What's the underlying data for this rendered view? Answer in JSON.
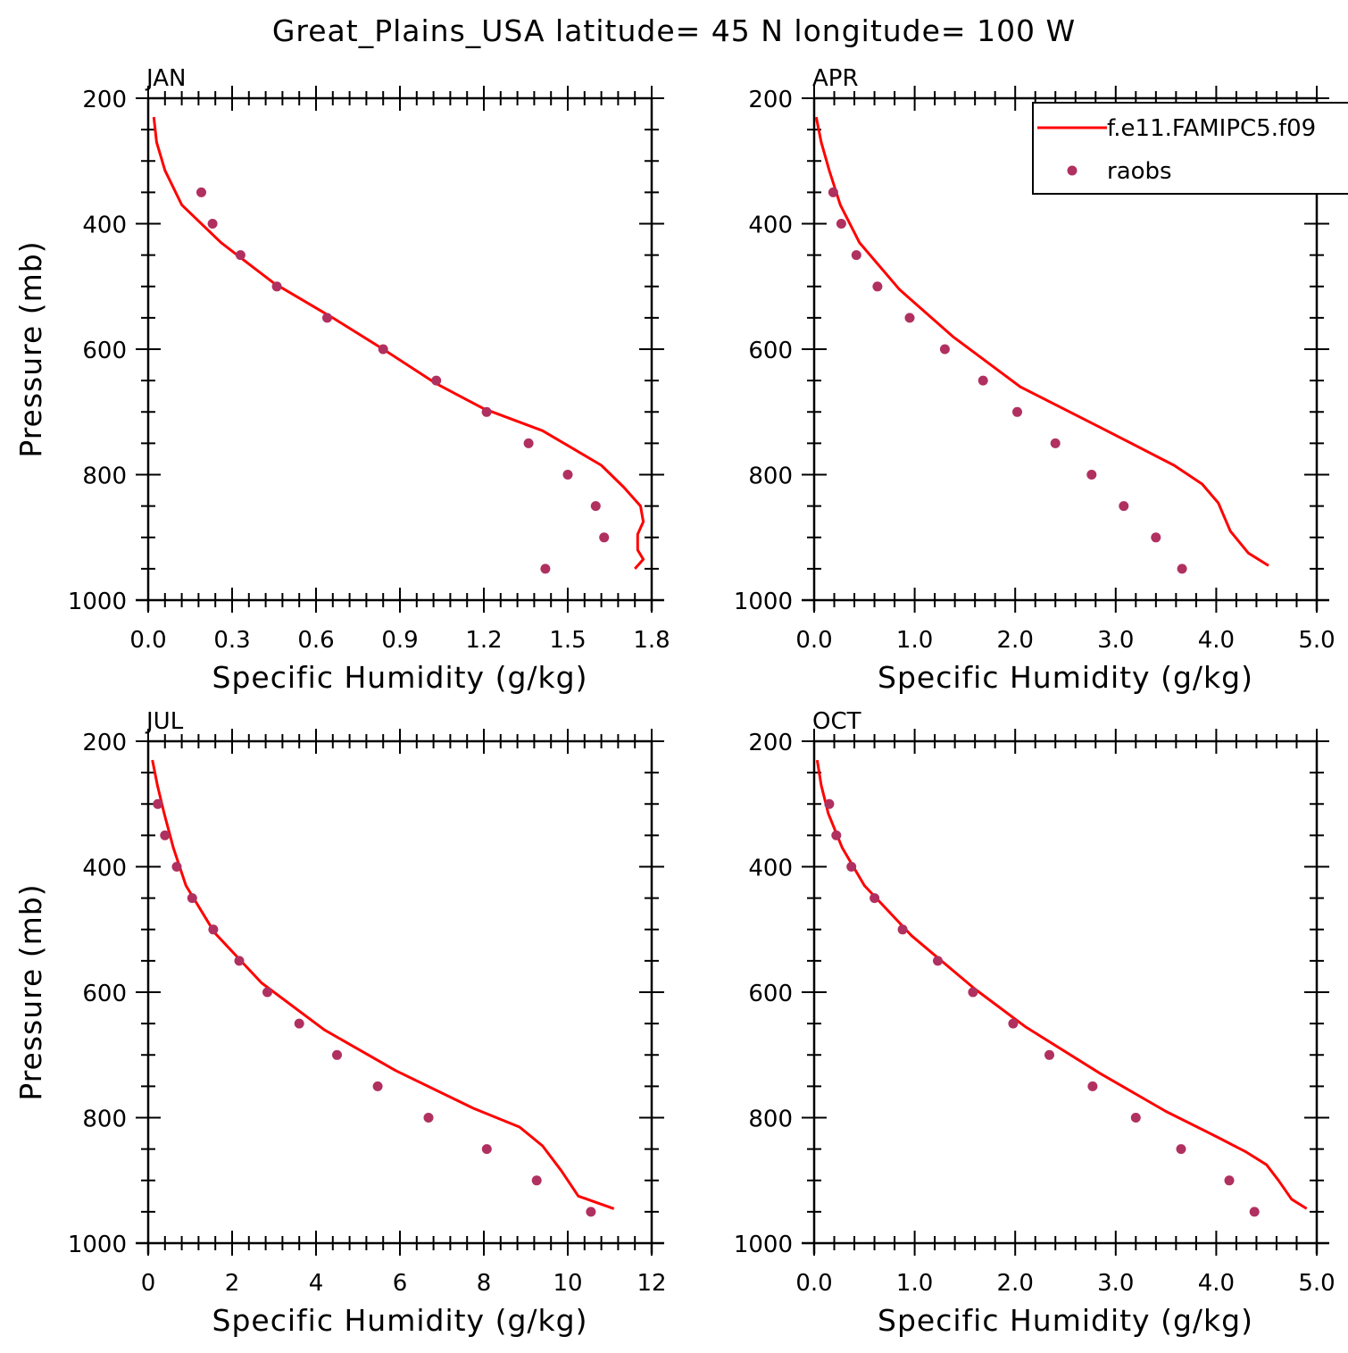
{
  "title": "Great_Plains_USA  latitude= 45 N longitude= 100 W",
  "colors": {
    "model": "#ff0000",
    "obs": "#b03060",
    "axis": "#000000"
  },
  "legend": {
    "position": "top-right of APR panel",
    "items": [
      {
        "label": "f.e11.FAMIPC5.f09",
        "style": "line",
        "color": "#ff0000"
      },
      {
        "label": "raobs",
        "style": "dot",
        "color": "#b03060"
      }
    ]
  },
  "chart_data": [
    {
      "type": "line",
      "panel": "JAN",
      "xlabel": "Specific Humidity (g/kg)",
      "ylabel": "Pressure (mb)",
      "xlim": [
        0,
        1.8
      ],
      "ylim": [
        1000,
        200
      ],
      "xticks": [
        "0.0",
        "0.3",
        "0.6",
        "0.9",
        "1.2",
        "1.5",
        "1.8"
      ],
      "yticks": [
        "200",
        "400",
        "600",
        "800",
        "1000"
      ],
      "series": [
        {
          "name": "f.e11.FAMIPC5.f09",
          "style": "line",
          "points": [
            [
              0.02,
              230
            ],
            [
              0.03,
              270
            ],
            [
              0.06,
              315
            ],
            [
              0.12,
              370
            ],
            [
              0.26,
              430
            ],
            [
              0.45,
              495
            ],
            [
              0.66,
              550
            ],
            [
              0.84,
              600
            ],
            [
              1.03,
              655
            ],
            [
              1.2,
              695
            ],
            [
              1.41,
              730
            ],
            [
              1.62,
              785
            ],
            [
              1.7,
              820
            ],
            [
              1.76,
              850
            ],
            [
              1.77,
              875
            ],
            [
              1.75,
              895
            ],
            [
              1.75,
              920
            ],
            [
              1.77,
              935
            ],
            [
              1.74,
              950
            ]
          ]
        },
        {
          "name": "raobs",
          "style": "scatter",
          "points": [
            [
              0.19,
              350
            ],
            [
              0.23,
              400
            ],
            [
              0.33,
              450
            ],
            [
              0.46,
              500
            ],
            [
              0.64,
              550
            ],
            [
              0.84,
              600
            ],
            [
              1.03,
              650
            ],
            [
              1.21,
              700
            ],
            [
              1.36,
              750
            ],
            [
              1.5,
              800
            ],
            [
              1.6,
              850
            ],
            [
              1.63,
              900
            ],
            [
              1.42,
              950
            ]
          ]
        }
      ]
    },
    {
      "type": "line",
      "panel": "APR",
      "xlabel": "Specific Humidity (g/kg)",
      "ylabel": "",
      "xlim": [
        0,
        5
      ],
      "ylim": [
        1000,
        200
      ],
      "xticks": [
        "0.0",
        "1.0",
        "2.0",
        "3.0",
        "4.0",
        "5.0"
      ],
      "yticks": [
        "200",
        "400",
        "600",
        "800",
        "1000"
      ],
      "series": [
        {
          "name": "f.e11.FAMIPC5.f09",
          "style": "line",
          "points": [
            [
              0.02,
              230
            ],
            [
              0.07,
              270
            ],
            [
              0.15,
              315
            ],
            [
              0.26,
              370
            ],
            [
              0.45,
              430
            ],
            [
              0.85,
              505
            ],
            [
              1.38,
              580
            ],
            [
              2.05,
              660
            ],
            [
              2.85,
              725
            ],
            [
              3.58,
              785
            ],
            [
              3.86,
              815
            ],
            [
              4.02,
              845
            ],
            [
              4.14,
              890
            ],
            [
              4.32,
              925
            ],
            [
              4.52,
              945
            ]
          ]
        },
        {
          "name": "raobs",
          "style": "scatter",
          "points": [
            [
              0.19,
              350
            ],
            [
              0.27,
              400
            ],
            [
              0.42,
              450
            ],
            [
              0.63,
              500
            ],
            [
              0.95,
              550
            ],
            [
              1.3,
              600
            ],
            [
              1.68,
              650
            ],
            [
              2.02,
              700
            ],
            [
              2.4,
              750
            ],
            [
              2.76,
              800
            ],
            [
              3.08,
              850
            ],
            [
              3.4,
              900
            ],
            [
              3.66,
              950
            ]
          ]
        }
      ]
    },
    {
      "type": "line",
      "panel": "JUL",
      "xlabel": "Specific Humidity (g/kg)",
      "ylabel": "Pressure (mb)",
      "xlim": [
        0,
        12
      ],
      "ylim": [
        1000,
        200
      ],
      "xticks": [
        "0",
        "2",
        "4",
        "6",
        "8",
        "10",
        "12"
      ],
      "yticks": [
        "200",
        "400",
        "600",
        "800",
        "1000"
      ],
      "series": [
        {
          "name": "f.e11.FAMIPC5.f09",
          "style": "line",
          "points": [
            [
              0.1,
              230
            ],
            [
              0.22,
              270
            ],
            [
              0.38,
              315
            ],
            [
              0.6,
              370
            ],
            [
              0.9,
              430
            ],
            [
              1.58,
              505
            ],
            [
              2.7,
              585
            ],
            [
              4.2,
              660
            ],
            [
              5.9,
              725
            ],
            [
              7.75,
              785
            ],
            [
              8.85,
              815
            ],
            [
              9.4,
              845
            ],
            [
              9.85,
              885
            ],
            [
              10.25,
              925
            ],
            [
              11.1,
              945
            ]
          ]
        },
        {
          "name": "raobs",
          "style": "scatter",
          "points": [
            [
              0.23,
              300
            ],
            [
              0.4,
              350
            ],
            [
              0.68,
              400
            ],
            [
              1.05,
              450
            ],
            [
              1.55,
              500
            ],
            [
              2.17,
              550
            ],
            [
              2.84,
              600
            ],
            [
              3.6,
              650
            ],
            [
              4.5,
              700
            ],
            [
              5.47,
              750
            ],
            [
              6.68,
              800
            ],
            [
              8.07,
              850
            ],
            [
              9.26,
              900
            ],
            [
              10.55,
              950
            ]
          ]
        }
      ]
    },
    {
      "type": "line",
      "panel": "OCT",
      "xlabel": "Specific Humidity (g/kg)",
      "ylabel": "",
      "xlim": [
        0,
        5
      ],
      "ylim": [
        1000,
        200
      ],
      "xticks": [
        "0.0",
        "1.0",
        "2.0",
        "3.0",
        "4.0",
        "5.0"
      ],
      "yticks": [
        "200",
        "400",
        "600",
        "800",
        "1000"
      ],
      "series": [
        {
          "name": "f.e11.FAMIPC5.f09",
          "style": "line",
          "points": [
            [
              0.03,
              230
            ],
            [
              0.07,
              270
            ],
            [
              0.14,
              315
            ],
            [
              0.28,
              370
            ],
            [
              0.5,
              430
            ],
            [
              0.97,
              510
            ],
            [
              1.6,
              595
            ],
            [
              2.1,
              655
            ],
            [
              2.85,
              730
            ],
            [
              3.5,
              790
            ],
            [
              4.0,
              830
            ],
            [
              4.3,
              855
            ],
            [
              4.5,
              875
            ],
            [
              4.62,
              900
            ],
            [
              4.75,
              930
            ],
            [
              4.9,
              945
            ]
          ]
        },
        {
          "name": "raobs",
          "style": "scatter",
          "points": [
            [
              0.15,
              300
            ],
            [
              0.22,
              350
            ],
            [
              0.37,
              400
            ],
            [
              0.6,
              450
            ],
            [
              0.88,
              500
            ],
            [
              1.23,
              550
            ],
            [
              1.58,
              600
            ],
            [
              1.98,
              650
            ],
            [
              2.34,
              700
            ],
            [
              2.77,
              750
            ],
            [
              3.2,
              800
            ],
            [
              3.65,
              850
            ],
            [
              4.13,
              900
            ],
            [
              4.38,
              950
            ]
          ]
        }
      ]
    }
  ]
}
